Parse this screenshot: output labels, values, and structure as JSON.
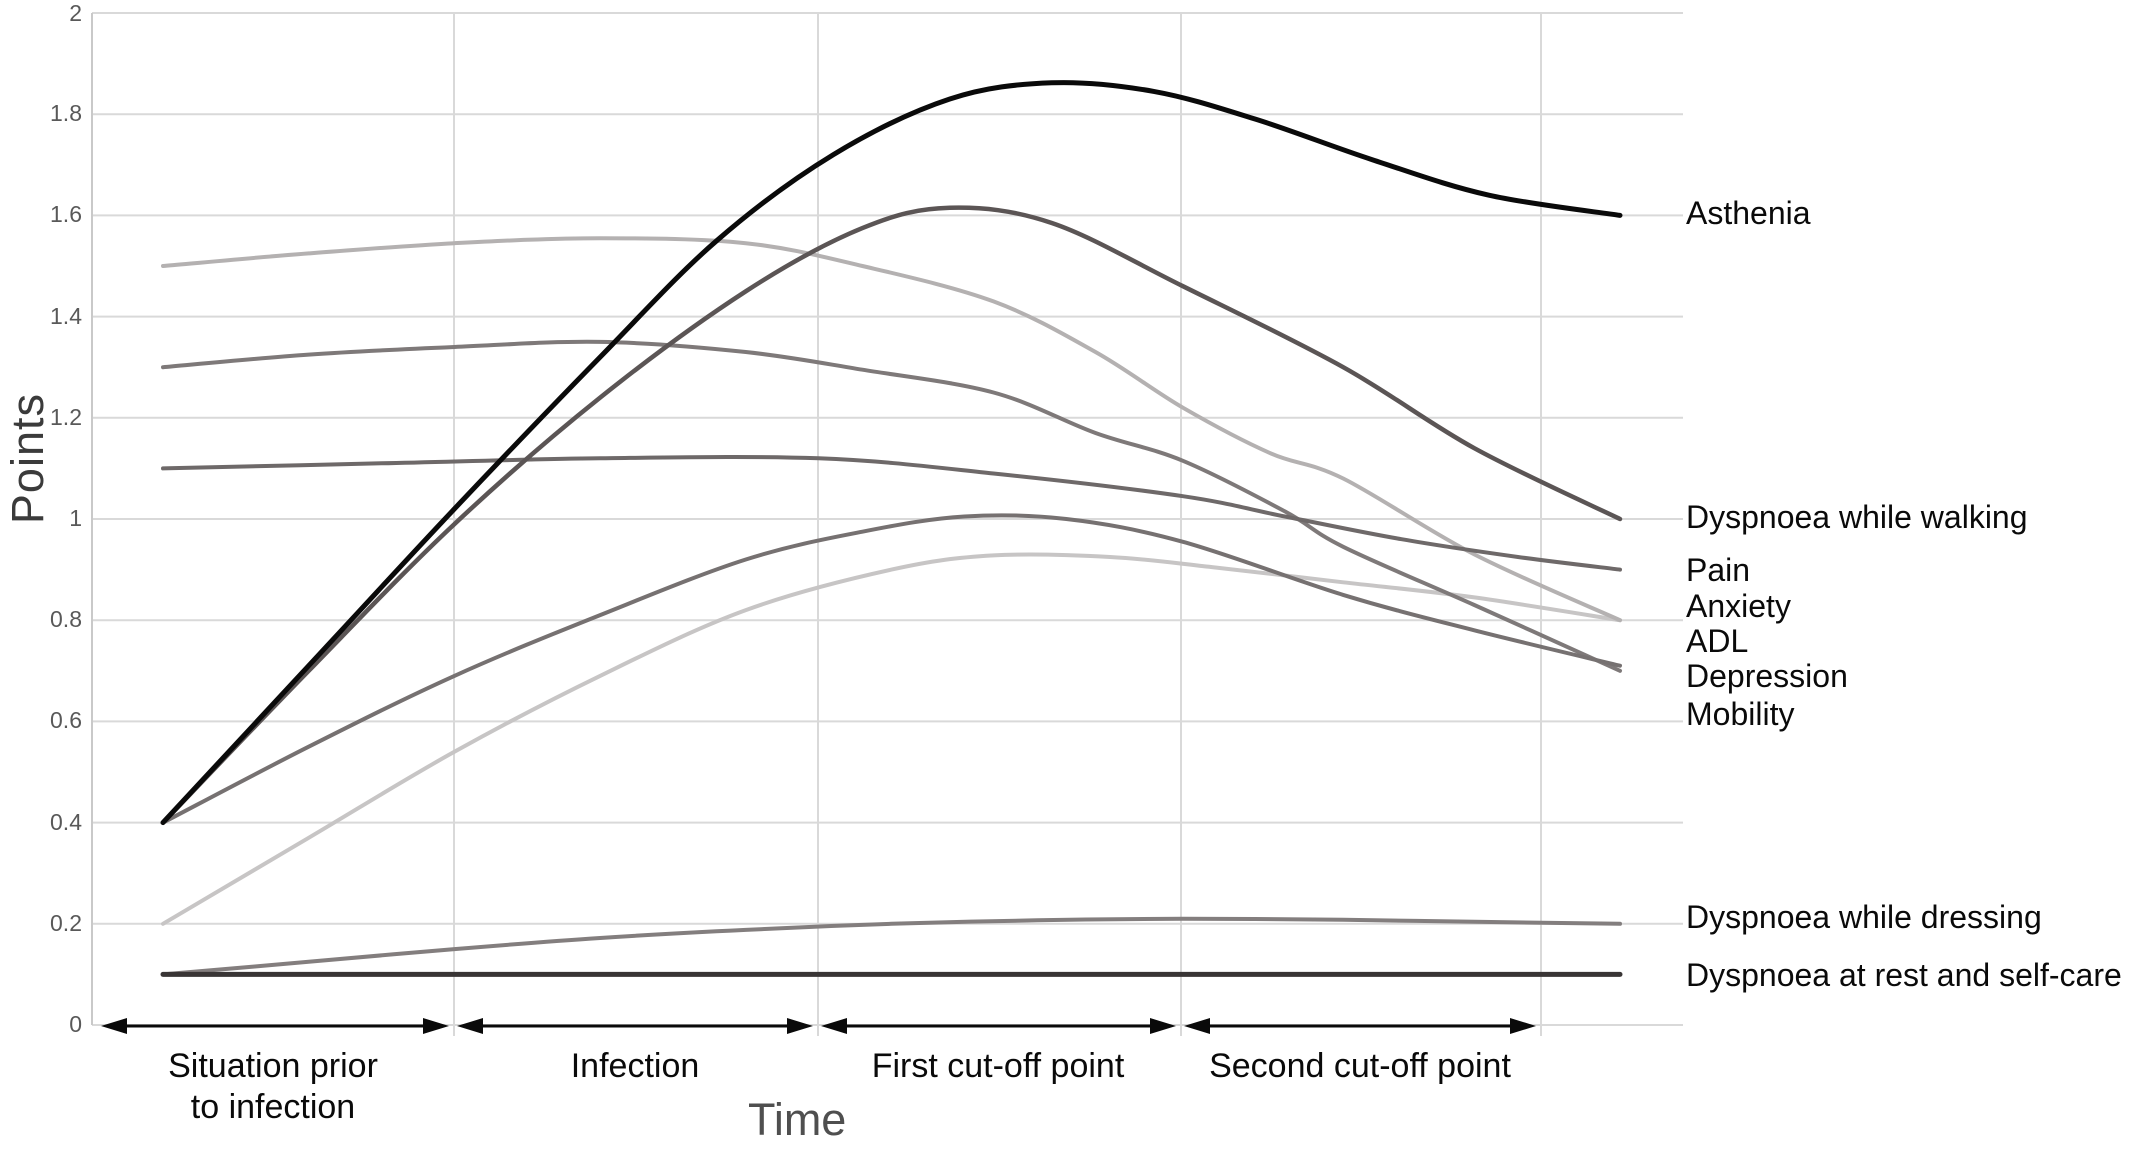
{
  "axis_titles": {
    "y": "Points",
    "x": "Time"
  },
  "chart_data": {
    "type": "line",
    "title": "",
    "xlabel": "Time",
    "ylabel": "Points",
    "ylim": [
      0,
      2
    ],
    "yticks": [
      2,
      1.8,
      1.6,
      1.4,
      1.2,
      1,
      0.8,
      0.6,
      0.4,
      0.2,
      0
    ],
    "ytick_labels": [
      "2",
      "1.8",
      "1.6",
      "1.4",
      "1.2",
      "1",
      "0.8",
      "0.6",
      "0.4",
      "0.2",
      "0"
    ],
    "grid": true,
    "legend_position": "labels-at-right-edge-of-lines",
    "x_unit": "percent of timeline (0-100), qualitative phases",
    "x_axis_phases": [
      {
        "line1": "Situation prior",
        "line2": "to infection"
      },
      {
        "line1": "Infection",
        "line2": ""
      },
      {
        "line1": "First cut-off point",
        "line2": ""
      },
      {
        "line1": "Second cut-off point",
        "line2": ""
      }
    ],
    "series": [
      {
        "name": "Asthenia",
        "color": "#0a0a0a",
        "stroke_width": 5,
        "label_value": 1.6,
        "z": 9,
        "points": [
          [
            0,
            0.4
          ],
          [
            10,
            0.71
          ],
          [
            20,
            1.02
          ],
          [
            30,
            1.32
          ],
          [
            38,
            1.55
          ],
          [
            46,
            1.72
          ],
          [
            54,
            1.83
          ],
          [
            61,
            1.862
          ],
          [
            68,
            1.845
          ],
          [
            75,
            1.79
          ],
          [
            83,
            1.71
          ],
          [
            91,
            1.64
          ],
          [
            100,
            1.6
          ]
        ]
      },
      {
        "name": "Dyspnoea while walking",
        "color": "#5b5555",
        "stroke_width": 4.5,
        "label_value": 1.0,
        "z": 7,
        "points": [
          [
            0,
            0.4
          ],
          [
            10,
            0.7
          ],
          [
            20,
            0.99
          ],
          [
            30,
            1.24
          ],
          [
            40,
            1.45
          ],
          [
            48,
            1.575
          ],
          [
            54,
            1.615
          ],
          [
            61,
            1.585
          ],
          [
            70,
            1.46
          ],
          [
            81,
            1.3
          ],
          [
            90,
            1.14
          ],
          [
            100,
            1.0
          ]
        ]
      },
      {
        "name": "Pain",
        "color": "#6e6969",
        "stroke_width": 4,
        "label_value": 0.895,
        "z": 6,
        "points": [
          [
            0,
            1.1
          ],
          [
            15,
            1.11
          ],
          [
            30,
            1.12
          ],
          [
            45,
            1.12
          ],
          [
            57,
            1.09
          ],
          [
            70,
            1.045
          ],
          [
            77,
            1.005
          ],
          [
            85,
            0.96
          ],
          [
            93,
            0.925
          ],
          [
            100,
            0.9
          ]
        ]
      },
      {
        "name": "Anxiety",
        "color": "#c7c5c5",
        "stroke_width": 4,
        "label_value": 0.825,
        "z": 1,
        "points": [
          [
            0,
            0.2
          ],
          [
            10,
            0.37
          ],
          [
            20,
            0.54
          ],
          [
            30,
            0.69
          ],
          [
            40,
            0.82
          ],
          [
            50,
            0.9
          ],
          [
            57,
            0.928
          ],
          [
            65,
            0.925
          ],
          [
            72,
            0.905
          ],
          [
            81,
            0.875
          ],
          [
            90,
            0.845
          ],
          [
            100,
            0.8
          ]
        ]
      },
      {
        "name": "ADL",
        "color": "#b4b1b1",
        "stroke_width": 4,
        "label_value": 0.755,
        "z": 2,
        "points": [
          [
            0,
            1.5
          ],
          [
            10,
            1.525
          ],
          [
            20,
            1.545
          ],
          [
            30,
            1.555
          ],
          [
            40,
            1.545
          ],
          [
            48,
            1.5
          ],
          [
            57,
            1.43
          ],
          [
            64,
            1.33
          ],
          [
            70,
            1.22
          ],
          [
            76,
            1.13
          ],
          [
            81,
            1.08
          ],
          [
            90,
            0.93
          ],
          [
            100,
            0.8
          ]
        ]
      },
      {
        "name": "Depression",
        "color": "#767171",
        "stroke_width": 4,
        "label_value": 0.685,
        "z": 5,
        "points": [
          [
            0,
            0.4
          ],
          [
            10,
            0.55
          ],
          [
            20,
            0.69
          ],
          [
            30,
            0.81
          ],
          [
            40,
            0.92
          ],
          [
            48,
            0.975
          ],
          [
            55,
            1.005
          ],
          [
            62,
            1.0
          ],
          [
            70,
            0.955
          ],
          [
            81,
            0.85
          ],
          [
            90,
            0.78
          ],
          [
            100,
            0.71
          ]
        ]
      },
      {
        "name": "Mobility",
        "color": "#7e7979",
        "stroke_width": 4,
        "label_value": 0.61,
        "z": 4,
        "points": [
          [
            0,
            1.3
          ],
          [
            10,
            1.325
          ],
          [
            20,
            1.34
          ],
          [
            30,
            1.35
          ],
          [
            40,
            1.33
          ],
          [
            48,
            1.295
          ],
          [
            57,
            1.25
          ],
          [
            64,
            1.17
          ],
          [
            70,
            1.115
          ],
          [
            77,
            1.015
          ],
          [
            81,
            0.945
          ],
          [
            90,
            0.83
          ],
          [
            100,
            0.7
          ]
        ]
      },
      {
        "name": "Dyspnoea while dressing",
        "color": "#837e7e",
        "stroke_width": 4,
        "label_value": 0.21,
        "z": 3,
        "points": [
          [
            0,
            0.1
          ],
          [
            10,
            0.125
          ],
          [
            20,
            0.15
          ],
          [
            30,
            0.172
          ],
          [
            40,
            0.188
          ],
          [
            50,
            0.2
          ],
          [
            60,
            0.207
          ],
          [
            70,
            0.21
          ],
          [
            81,
            0.208
          ],
          [
            90,
            0.204
          ],
          [
            100,
            0.2
          ]
        ]
      },
      {
        "name": "Dyspnoea at rest and self-care",
        "color": "#393535",
        "stroke_width": 5,
        "label_value": 0.095,
        "z": 8,
        "points": [
          [
            0,
            0.1
          ],
          [
            25,
            0.1
          ],
          [
            50,
            0.1
          ],
          [
            75,
            0.1
          ],
          [
            100,
            0.1
          ]
        ]
      }
    ],
    "style": {
      "gridline_color": "#d9d9d9",
      "axis_line_color": "#c9c9c9",
      "arrow_color": "#0a0a0a",
      "tick_label_color": "#595959"
    }
  }
}
